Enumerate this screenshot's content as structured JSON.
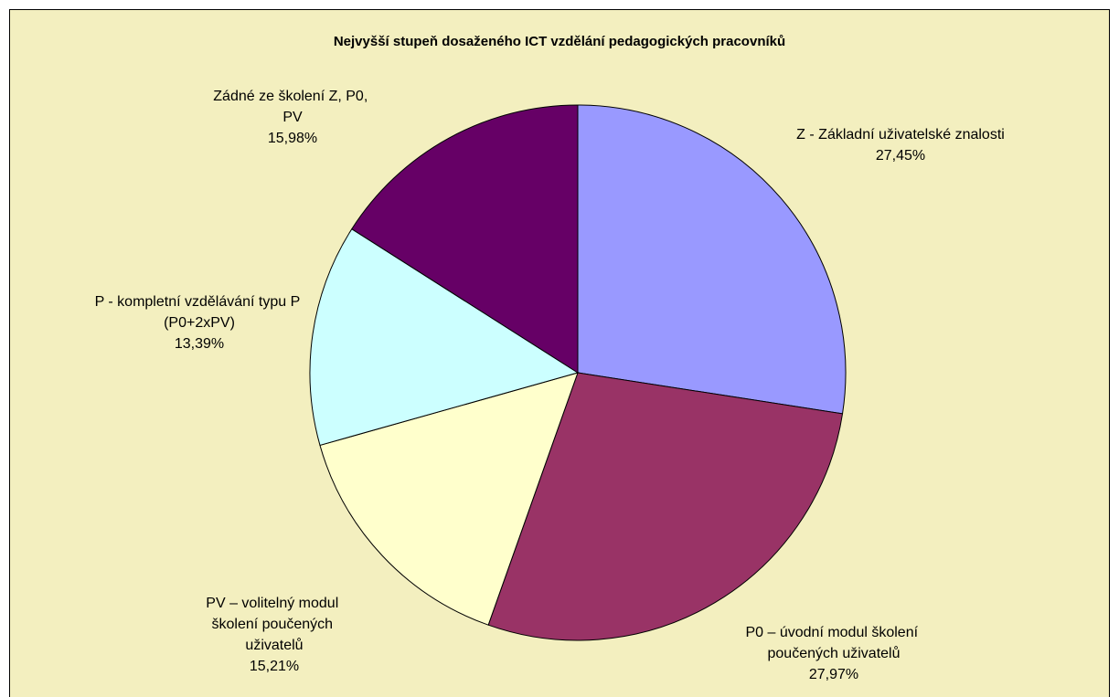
{
  "chart_data": {
    "type": "pie",
    "title": "Nejvyšší stupeň dosaženého ICT vzdělání pedagogických pracovníků",
    "categories": [
      "Z - Základní uživatelské znalosti",
      "P0 – úvodní modul školení poučených uživatelů",
      "PV – volitelný modul školení poučených uživatelů",
      "P - kompletní vzdělávání typu P (P0+2xPV)",
      "Zádné ze školení Z, P0, PV"
    ],
    "values": [
      27.45,
      27.97,
      15.21,
      13.39,
      15.98
    ],
    "value_labels": [
      "27,45%",
      "27,97%",
      "15,21%",
      "13,39%",
      "15,98%"
    ],
    "colors": [
      "#9999ff",
      "#993366",
      "#ffffcc",
      "#ccffff",
      "#660066"
    ]
  }
}
